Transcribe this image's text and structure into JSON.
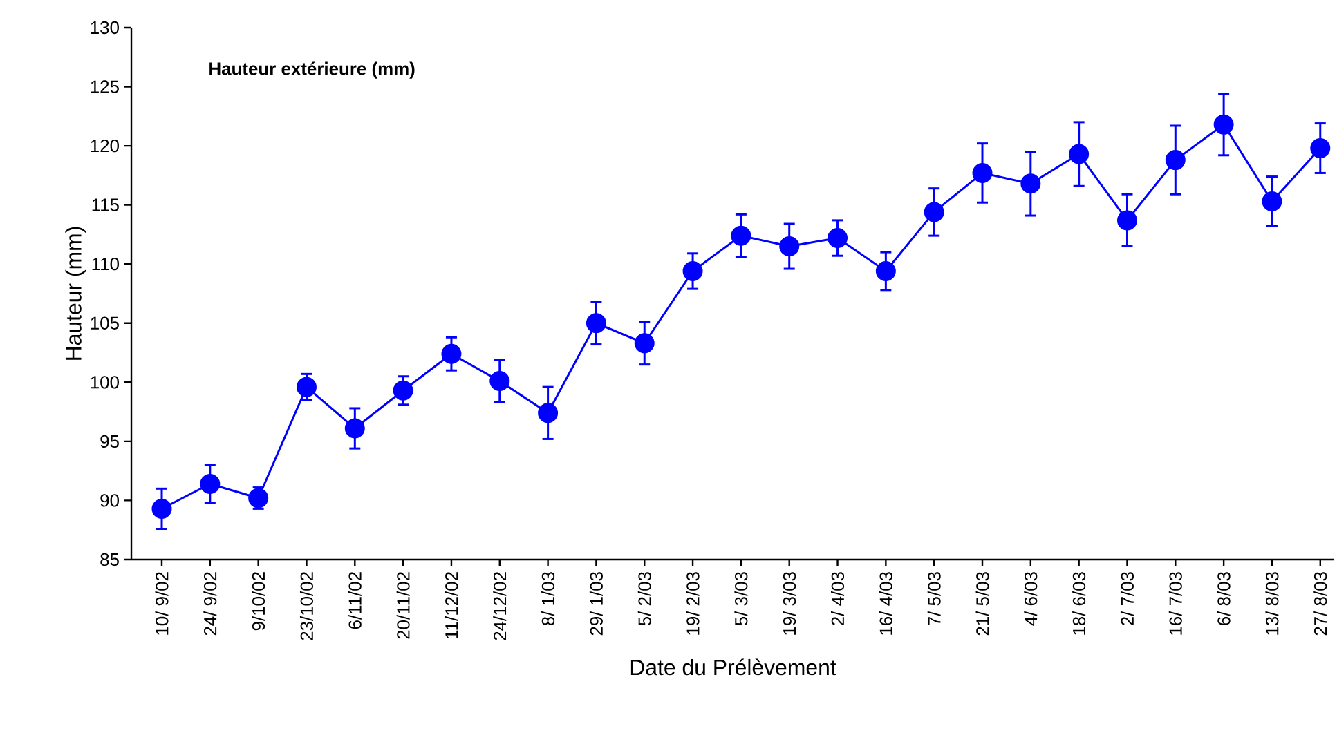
{
  "chart_data": {
    "type": "line",
    "title": "Hauteur extérieure (mm)",
    "xlabel": "Date du Prélèvement",
    "ylabel": "Hauteur (mm)",
    "categories": [
      "10/ 9/02",
      "24/ 9/02",
      "9/10/02",
      "23/10/02",
      "6/11/02",
      "20/11/02",
      "11/12/02",
      "24/12/02",
      "8/ 1/03",
      "29/ 1/03",
      "5/ 2/03",
      "19/ 2/03",
      "5/ 3/03",
      "19/ 3/03",
      "2/ 4/03",
      "16/ 4/03",
      "7/ 5/03",
      "21/ 5/03",
      "4/ 6/03",
      "18/ 6/03",
      "2/ 7/03",
      "16/ 7/03",
      "6/ 8/03",
      "13/ 8/03",
      "27/ 8/03"
    ],
    "series": [
      {
        "color": "#0000ff",
        "values": [
          89.3,
          91.4,
          90.2,
          99.6,
          96.1,
          99.3,
          102.4,
          100.1,
          97.4,
          105.0,
          103.3,
          109.4,
          112.4,
          111.5,
          112.2,
          109.4,
          114.4,
          117.7,
          116.8,
          119.3,
          113.7,
          118.8,
          121.8,
          115.3,
          119.8
        ],
        "errors": [
          1.7,
          1.6,
          0.9,
          1.1,
          1.7,
          1.2,
          1.4,
          1.8,
          2.2,
          1.8,
          1.8,
          1.5,
          1.8,
          1.9,
          1.5,
          1.6,
          2.0,
          2.5,
          2.7,
          2.7,
          2.2,
          2.9,
          2.6,
          2.1,
          2.1
        ]
      }
    ],
    "ylim": [
      85,
      130
    ],
    "yticks": [
      85,
      90,
      95,
      100,
      105,
      110,
      115,
      120,
      125,
      130
    ],
    "marker": "circle",
    "line_style": "solid"
  }
}
